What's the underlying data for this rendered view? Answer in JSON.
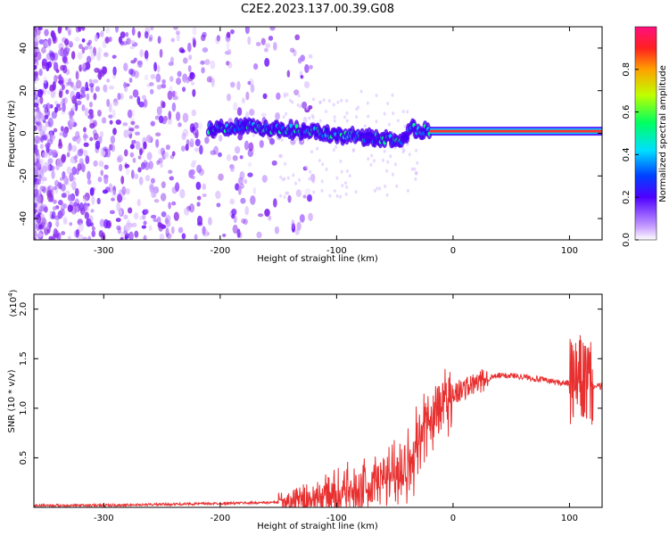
{
  "title": "C2E2.2023.137.00.39.G08",
  "chart_data": [
    {
      "type": "heatmap",
      "xlabel": "Height of straight line (km)",
      "ylabel": "Frequency (Hz)",
      "xlim": [
        -360,
        128
      ],
      "ylim": [
        -50,
        50
      ],
      "xticks": [
        -300,
        -200,
        -100,
        0,
        100
      ],
      "yticks": [
        -40,
        -20,
        0,
        20,
        40
      ],
      "colorbar": {
        "label": "Normalized spectral amplitude",
        "range": [
          0,
          1
        ],
        "ticks": [
          "0.0",
          "0.2",
          "0.4",
          "0.6",
          "0.8"
        ]
      },
      "ridge": {
        "x": [
          -210,
          -180,
          -150,
          -120,
          -100,
          -80,
          -60,
          -45,
          -35,
          -20,
          0,
          50,
          100,
          128
        ],
        "y": [
          2,
          3,
          2,
          1,
          -1,
          -2,
          -3,
          -4,
          2,
          1,
          1,
          1,
          1,
          1
        ]
      }
    },
    {
      "type": "line",
      "xlabel": "Height of straight line (km)",
      "ylabel": "SNR (10 * v/v)",
      "yscale_label": "(x10",
      "yscale_exp": "4",
      "xlim": [
        -360,
        128
      ],
      "ylim": [
        0,
        2.15
      ],
      "xticks": [
        -300,
        -200,
        -100,
        0,
        100
      ],
      "yticks": [
        "0.5",
        "1.0",
        "1.5",
        "2.0"
      ],
      "series": [
        {
          "color": "#e83030",
          "x": [
            -360,
            -300,
            -250,
            -200,
            -150,
            -130,
            -110,
            -100,
            -90,
            -80,
            -70,
            -60,
            -50,
            -40,
            -30,
            -25,
            -20,
            -15,
            -10,
            -5,
            0,
            10,
            20,
            30,
            40,
            50,
            60,
            70,
            80,
            90,
            100,
            105,
            110,
            115,
            120,
            128
          ],
          "y": [
            0.02,
            0.02,
            0.03,
            0.04,
            0.05,
            0.07,
            0.1,
            0.15,
            0.15,
            0.18,
            0.22,
            0.27,
            0.35,
            0.45,
            0.6,
            0.75,
            0.9,
            0.95,
            1.05,
            1.1,
            1.15,
            1.2,
            1.25,
            1.3,
            1.33,
            1.33,
            1.32,
            1.3,
            1.28,
            1.26,
            1.25,
            1.25,
            1.3,
            1.25,
            1.22,
            1.22
          ]
        }
      ]
    }
  ]
}
